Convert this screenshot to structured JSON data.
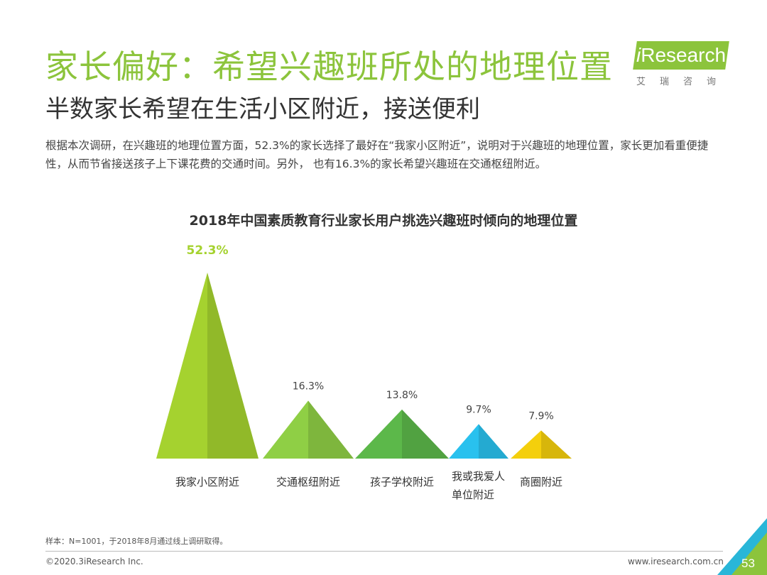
{
  "header": {
    "title": "家长偏好：希望兴趣班所处的地理位置",
    "subtitle": "半数家长希望在生活小区附近，接送便利",
    "description": "根据本次调研，在兴趣班的地理位置方面，52.3%的家长选择了最好在“我家小区附近”，说明对于兴趣班的地理位置，家长更加看重便捷性，从而节省接送孩子上下课花费的交通时间。另外， 也有16.3%的家长希望兴趣班在交通枢纽附近。"
  },
  "logo": {
    "name_prefix": "i",
    "name_rest": "Research",
    "chinese": "艾瑞咨询",
    "brand_color": "#8cc43c"
  },
  "chart_data": {
    "type": "bar",
    "title": "2018年中国素质教育行业家长用户挑选兴趣班时倾向的地理位置",
    "categories": [
      "我家小区附近",
      "交通枢纽附近",
      "孩子学校附近",
      "我或我爱人单位附近",
      "商圈附近"
    ],
    "category_lines": [
      [
        "我家小区附近"
      ],
      [
        "交通枢纽附近"
      ],
      [
        "孩子学校附近"
      ],
      [
        "我或我爱人",
        "单位附近"
      ],
      [
        "商圈附近"
      ]
    ],
    "values": [
      52.3,
      16.3,
      13.8,
      9.7,
      7.9
    ],
    "value_labels": [
      "52.3%",
      "16.3%",
      "13.8%",
      "9.7%",
      "7.9%"
    ],
    "colors": [
      "#a5d22f",
      "#8fcf45",
      "#5cb84a",
      "#29c1ee",
      "#f4cf0c"
    ],
    "highlight_color": "#a5d22f",
    "unit": "%"
  },
  "footer": {
    "note": "样本：N=1001，于2018年8月通过线上调研取得。",
    "copyright": "©2020.3iResearch Inc.",
    "website": "www.iresearch.com.cn",
    "page": "53",
    "corner_colors": [
      "#8cc43c",
      "#29b6d8"
    ]
  }
}
